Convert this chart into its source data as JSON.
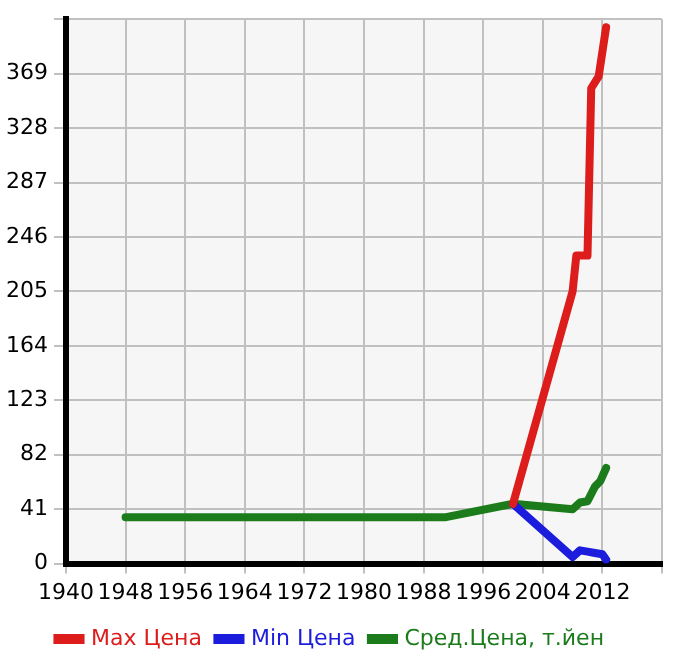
{
  "chart_data": {
    "type": "line",
    "xlim": [
      1940,
      2020
    ],
    "xticks": [
      1940,
      1948,
      1956,
      1964,
      1972,
      1980,
      1988,
      1996,
      2004,
      2012,
      {
        "value": 2020,
        "label": null
      }
    ],
    "ylim": [
      0,
      410
    ],
    "yticks": [
      0,
      41,
      82,
      123,
      164,
      205,
      246,
      287,
      328,
      369,
      {
        "value": 410,
        "label": null
      }
    ],
    "grid": true,
    "legend": "bottom",
    "marker": "none",
    "line_style": "solid",
    "series": [
      {
        "name": "Max Цена",
        "color": "#dd1c1c",
        "x": [
          2000,
          2008,
          2008.5,
          2010,
          2010.5,
          2011.5,
          2012.5
        ],
        "values": [
          45,
          205,
          232,
          232,
          358,
          367,
          404
        ]
      },
      {
        "name": "Min Цена",
        "color": "#1c1cdd",
        "x": [
          2000,
          2008,
          2009,
          2010,
          2011,
          2012,
          2012.5
        ],
        "values": [
          45,
          5,
          10,
          9,
          8,
          7,
          3
        ]
      },
      {
        "name": "Сред.Цена, т.йен",
        "color": "#1c7c1c",
        "x": [
          1948,
          1991,
          2000,
          2008,
          2009,
          2010,
          2011,
          2011.7,
          2012.5
        ],
        "values": [
          35,
          35,
          45,
          41,
          46,
          47,
          58,
          62,
          72
        ]
      }
    ]
  }
}
